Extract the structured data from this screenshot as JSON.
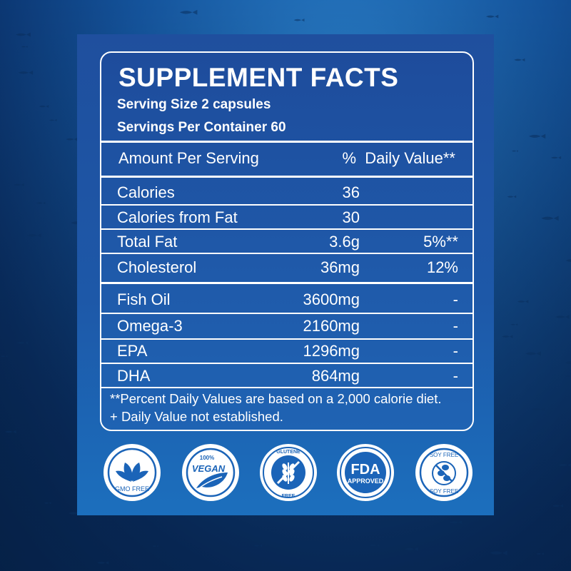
{
  "facts": {
    "title": "SUPPLEMENT FACTS",
    "serving_size": "Serving Size 2 capsules",
    "servings_per_container": "Servings Per Container 60",
    "header_left": "Amount Per Serving",
    "header_right": "%  Daily Value**",
    "rows": [
      {
        "name": "Calories",
        "amount": "36",
        "dv": ""
      },
      {
        "name": "Calories from Fat",
        "amount": "30",
        "dv": ""
      },
      {
        "name": "Total Fat",
        "amount": "3.6g",
        "dv": "5%**"
      },
      {
        "name": "Cholesterol",
        "amount": "36mg",
        "dv": "12%"
      },
      {
        "name": "Fish Oil",
        "amount": "3600mg",
        "dv": "-"
      },
      {
        "name": "Omega-3",
        "amount": "2160mg",
        "dv": "-"
      },
      {
        "name": "EPA",
        "amount": "1296mg",
        "dv": "-"
      },
      {
        "name": "DHA",
        "amount": "864mg",
        "dv": "-"
      }
    ],
    "footnote_1": "**Percent Daily Values are based on a 2,000 calorie diet.",
    "footnote_2": "+ Daily Value not established."
  },
  "badges": {
    "gmo": {
      "icon": "leaves-icon",
      "label": "GMO FREE"
    },
    "vegan": {
      "icon": "vegan-leaf-icon",
      "top": "100%",
      "label": "VEGAN"
    },
    "gluten": {
      "icon": "wheat-icon",
      "top": "GLUTENE",
      "bottom": "FREE"
    },
    "fda": {
      "icon": "fda-icon",
      "line1": "FDA",
      "line2": "APPROVED"
    },
    "soy": {
      "icon": "soybean-icon",
      "top": "SOY FREE",
      "bottom": "SOY FREE"
    }
  },
  "colors": {
    "panel": "#1f4f9e",
    "badge_blue": "#1b64b8",
    "text": "#ffffff"
  }
}
